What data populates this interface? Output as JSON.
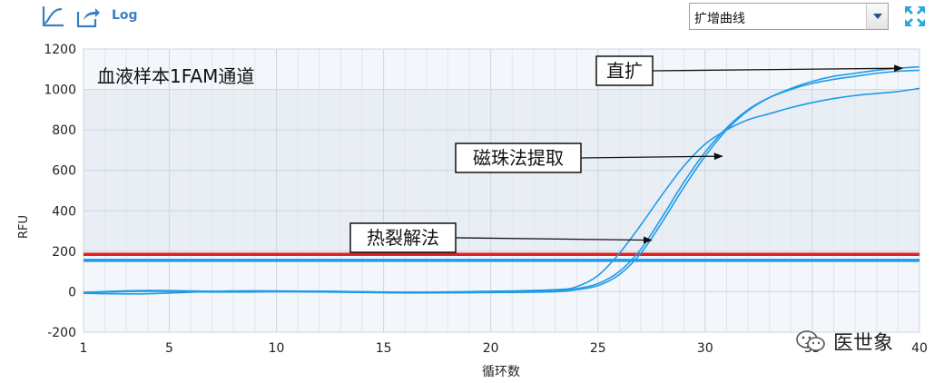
{
  "toolbar": {
    "log_label": "Log",
    "select_value": "扩增曲线"
  },
  "watermark": "医世象",
  "chart_data": {
    "type": "line",
    "title": "血液样本1FAM通道",
    "xlabel": "循环数",
    "ylabel": "RFU",
    "xlim": [
      1,
      40
    ],
    "ylim": [
      -200,
      1200
    ],
    "xticks": [
      1,
      5,
      10,
      15,
      20,
      25,
      30,
      35,
      40
    ],
    "yticks": [
      -200,
      0,
      200,
      400,
      600,
      800,
      1000,
      1200
    ],
    "grid": true,
    "thresholds": [
      {
        "value": 185,
        "color": "#e02020"
      },
      {
        "value": 155,
        "color": "#1e9be8"
      }
    ],
    "series": [
      {
        "color": "#1e9be8",
        "points": [
          [
            1,
            -8
          ],
          [
            4,
            -10
          ],
          [
            8,
            4
          ],
          [
            12,
            2
          ],
          [
            16,
            -2
          ],
          [
            20,
            2
          ],
          [
            23,
            10
          ],
          [
            24,
            25
          ],
          [
            25,
            80
          ],
          [
            26,
            190
          ],
          [
            27,
            330
          ],
          [
            28,
            480
          ],
          [
            29,
            620
          ],
          [
            30,
            730
          ],
          [
            31,
            800
          ],
          [
            32,
            850
          ],
          [
            33,
            880
          ],
          [
            34,
            910
          ],
          [
            35,
            935
          ],
          [
            36,
            955
          ],
          [
            37,
            970
          ],
          [
            38,
            980
          ],
          [
            39,
            990
          ],
          [
            40,
            1005
          ]
        ]
      },
      {
        "color": "#1e9be8",
        "points": [
          [
            1,
            -5
          ],
          [
            4,
            2
          ],
          [
            8,
            -2
          ],
          [
            12,
            3
          ],
          [
            16,
            -4
          ],
          [
            20,
            -2
          ],
          [
            23,
            5
          ],
          [
            24,
            15
          ],
          [
            25,
            40
          ],
          [
            26,
            100
          ],
          [
            27,
            210
          ],
          [
            28,
            370
          ],
          [
            29,
            540
          ],
          [
            30,
            690
          ],
          [
            31,
            810
          ],
          [
            32,
            900
          ],
          [
            33,
            960
          ],
          [
            34,
            1000
          ],
          [
            35,
            1030
          ],
          [
            36,
            1050
          ],
          [
            37,
            1065
          ],
          [
            38,
            1080
          ],
          [
            39,
            1090
          ],
          [
            40,
            1095
          ]
        ]
      },
      {
        "color": "#1e9be8",
        "points": [
          [
            1,
            -3
          ],
          [
            4,
            6
          ],
          [
            8,
            1
          ],
          [
            12,
            -1
          ],
          [
            16,
            -6
          ],
          [
            20,
            -4
          ],
          [
            23,
            0
          ],
          [
            24,
            10
          ],
          [
            25,
            30
          ],
          [
            26,
            85
          ],
          [
            27,
            190
          ],
          [
            28,
            345
          ],
          [
            29,
            515
          ],
          [
            30,
            670
          ],
          [
            31,
            800
          ],
          [
            32,
            895
          ],
          [
            33,
            960
          ],
          [
            34,
            1005
          ],
          [
            35,
            1040
          ],
          [
            36,
            1065
          ],
          [
            37,
            1080
          ],
          [
            38,
            1095
          ],
          [
            39,
            1105
          ],
          [
            40,
            1112
          ]
        ]
      }
    ],
    "annotations": [
      {
        "text": "直扩",
        "arrow_to": [
          39.2,
          1105
        ]
      },
      {
        "text": "磁珠法提取",
        "arrow_to": [
          30.8,
          670
        ]
      },
      {
        "text": "热裂解法",
        "arrow_to": [
          27.5,
          255
        ]
      }
    ]
  }
}
